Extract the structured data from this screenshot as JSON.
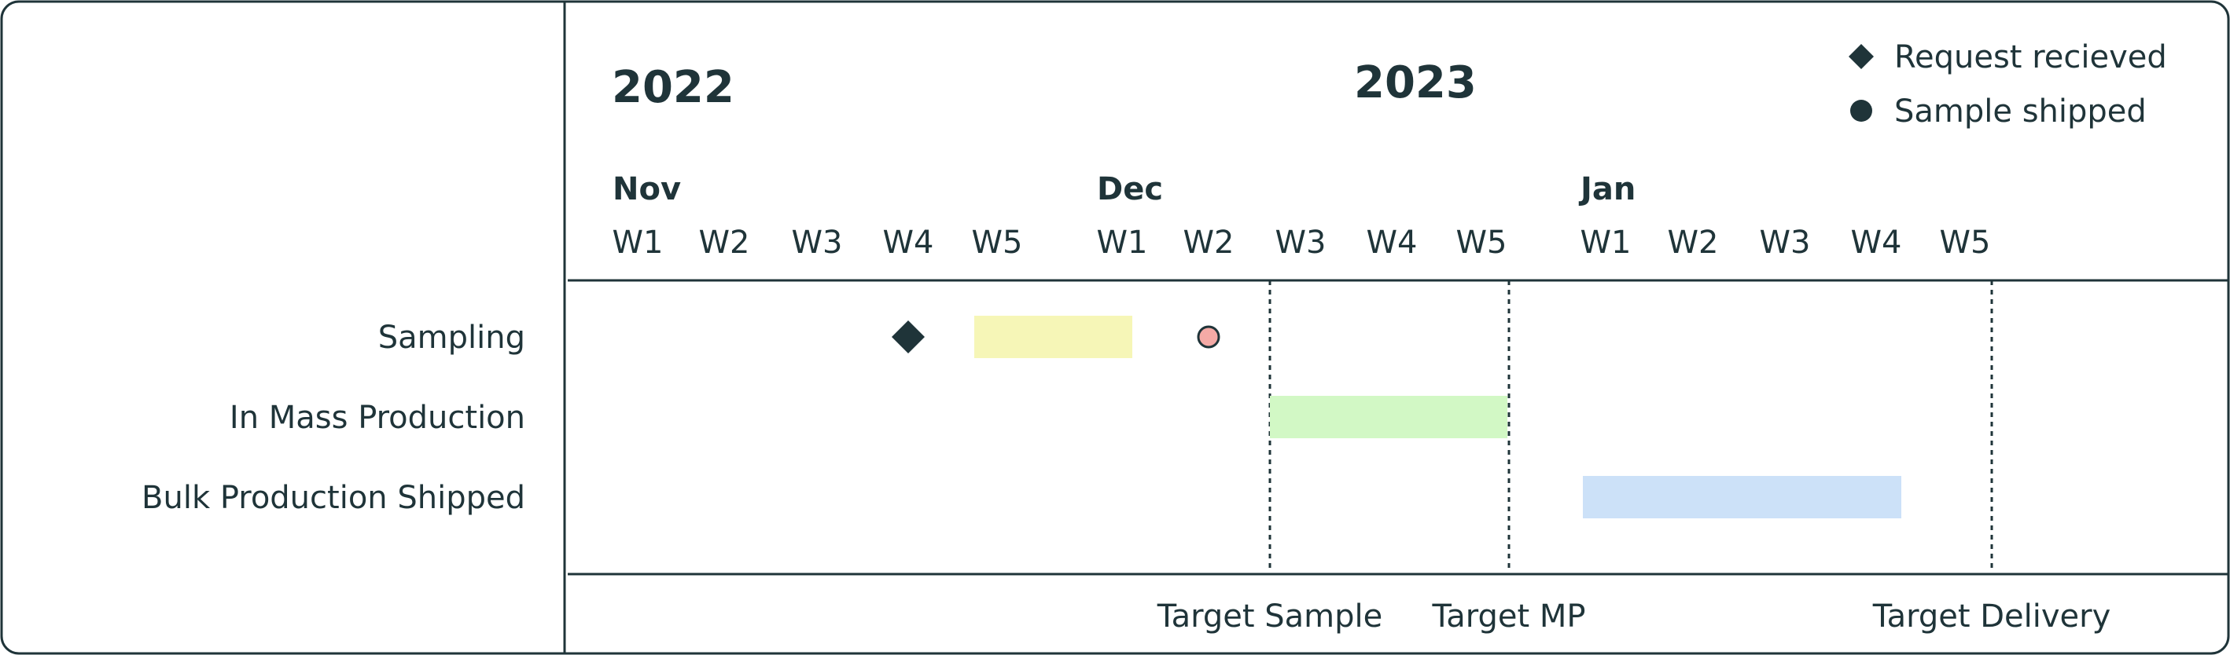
{
  "chart_data": {
    "type": "gantt",
    "title": "",
    "years": [
      {
        "label": "2022",
        "at_col": 0
      },
      {
        "label": "2023",
        "at_col": 8.5
      }
    ],
    "months": [
      {
        "label": "Nov",
        "start_col": 0
      },
      {
        "label": "Dec",
        "start_col": 5
      },
      {
        "label": "Jan",
        "start_col": 10
      }
    ],
    "weeks": [
      "W1",
      "W2",
      "W3",
      "W4",
      "W5",
      "W1",
      "W2",
      "W3",
      "W4",
      "W5",
      "W1",
      "W2",
      "W3",
      "W4",
      "W5"
    ],
    "rows": [
      "Sampling",
      "In Mass Production",
      "Bulk Production Shipped"
    ],
    "bars": [
      {
        "row": 0,
        "start_week": 5,
        "end_week": 6,
        "color": "#f6f6b7"
      },
      {
        "row": 1,
        "start_week": 8,
        "end_week": 10,
        "color": "#d2f8c5"
      },
      {
        "row": 2,
        "start_week": 11,
        "end_week": 14,
        "color": "#cce1f8"
      }
    ],
    "markers": [
      {
        "row": 0,
        "week": 4,
        "shape": "diamond",
        "series": "Request recieved",
        "color": "#1f3439"
      },
      {
        "row": 0,
        "week": 7,
        "shape": "circle",
        "series": "Sample shipped",
        "color": "#f4aaa6"
      }
    ],
    "milestones": [
      {
        "label": "Target Sample",
        "week": 8
      },
      {
        "label": "Target MP",
        "week": 10
      },
      {
        "label": "Target Delivery",
        "week": 15
      }
    ],
    "legend": {
      "placement": "top-right",
      "entries": [
        {
          "label": "Request recieved",
          "shape": "diamond"
        },
        {
          "label": "Sample shipped",
          "shape": "circle"
        }
      ]
    },
    "colors": {
      "ink": "#1f3439",
      "border": "#1f3439"
    }
  }
}
